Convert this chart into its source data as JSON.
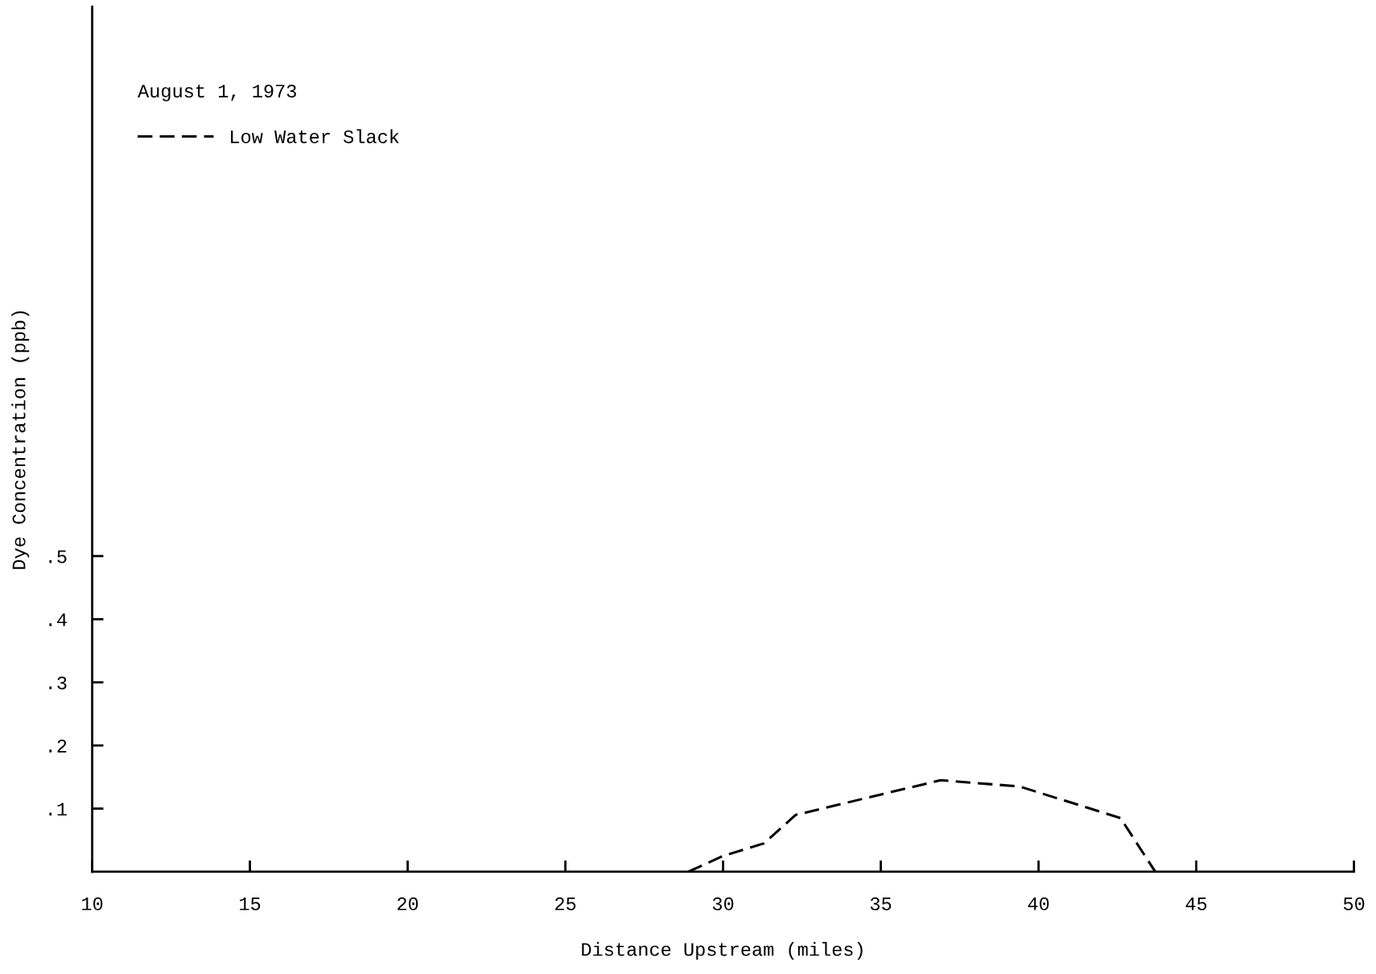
{
  "chart_data": {
    "type": "line",
    "xlabel": "Distance Upstream (miles)",
    "ylabel": "Dye Concentration (ppb)",
    "legend_title": "August 1, 1973",
    "series": [
      {
        "name": "Low Water Slack",
        "color": "#000000",
        "x": [
          28.9,
          30.0,
          31.3,
          32.3,
          36.9,
          39.4,
          42.6,
          43.7
        ],
        "values": [
          0,
          0.025,
          0.045,
          0.09,
          0.145,
          0.135,
          0.085,
          0
        ]
      }
    ],
    "xlim": [
      10,
      50
    ],
    "xticks": [
      10,
      15,
      20,
      25,
      30,
      35,
      40,
      45,
      50
    ],
    "ylim": [
      0,
      1.37
    ],
    "yticks": [
      {
        "value": 0.1,
        "label": ".1"
      },
      {
        "value": 0.2,
        "label": ".2"
      },
      {
        "value": 0.3,
        "label": ".3"
      },
      {
        "value": 0.4,
        "label": ".4"
      },
      {
        "value": 0.5,
        "label": ".5"
      }
    ],
    "grid": false,
    "legend": "top left",
    "marker": "none",
    "line_style": "dashed"
  }
}
